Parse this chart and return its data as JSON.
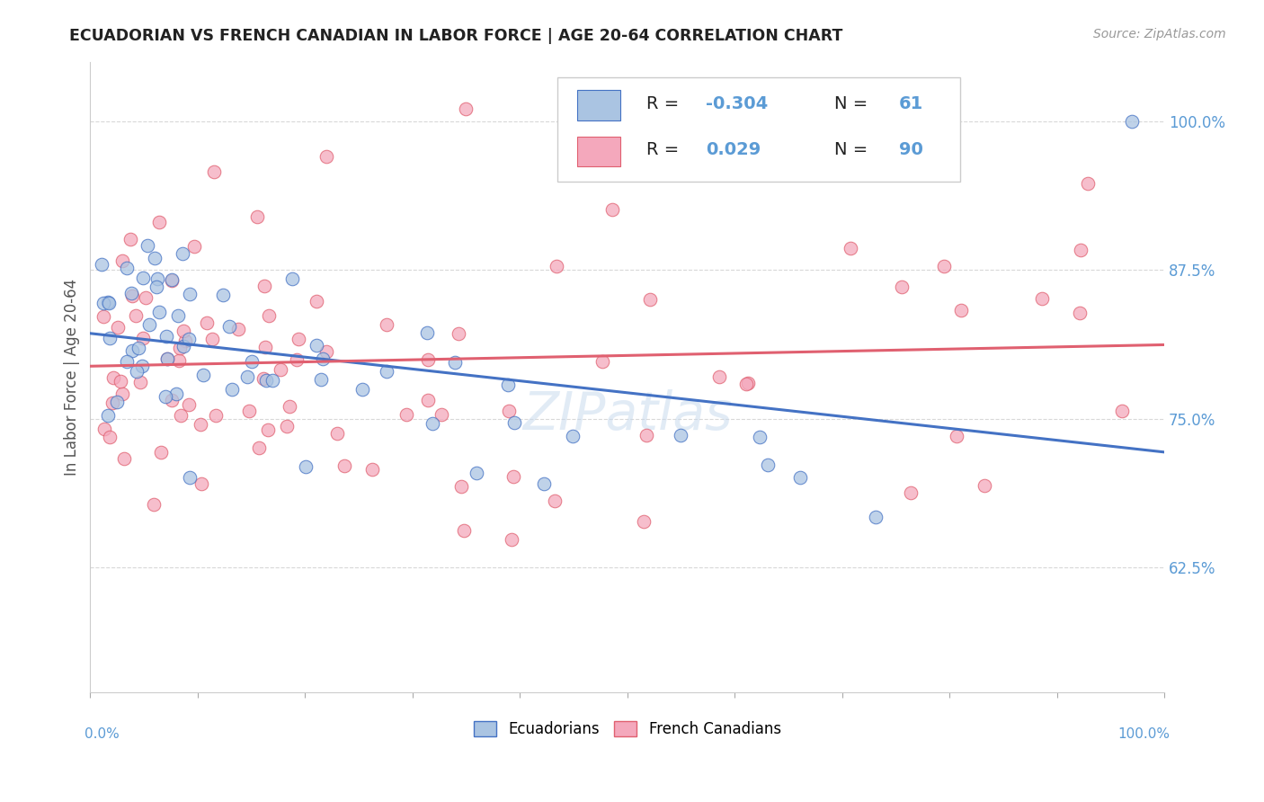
{
  "title": "ECUADORIAN VS FRENCH CANADIAN IN LABOR FORCE | AGE 20-64 CORRELATION CHART",
  "source_text": "Source: ZipAtlas.com",
  "ylabel": "In Labor Force | Age 20-64",
  "xlim": [
    0.0,
    1.0
  ],
  "ylim": [
    0.52,
    1.05
  ],
  "yticks": [
    0.625,
    0.75,
    0.875,
    1.0
  ],
  "ytick_labels": [
    "62.5%",
    "75.0%",
    "87.5%",
    "100.0%"
  ],
  "color_blue": "#aac4e2",
  "color_pink": "#f4a8bc",
  "line_blue": "#4472c4",
  "line_pink": "#e06070",
  "watermark": "ZIPatlas"
}
